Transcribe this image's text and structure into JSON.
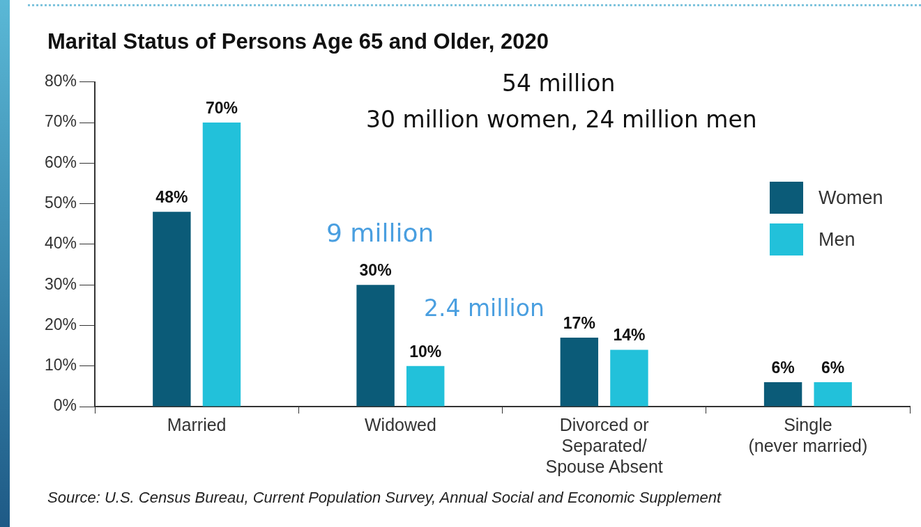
{
  "chart_data": {
    "type": "bar",
    "title": "Marital Status of Persons Age 65 and Older, 2020",
    "categories": [
      "Married",
      "Widowed",
      "Divorced or\nSeparated/\nSpouse Absent",
      "Single\n(never married)"
    ],
    "series": [
      {
        "name": "Women",
        "color": "#0b5b78",
        "values": [
          48,
          30,
          17,
          6
        ],
        "value_labels": [
          "48%",
          "30%",
          "17%",
          "6%"
        ]
      },
      {
        "name": "Men",
        "color": "#22c1da",
        "values": [
          70,
          10,
          14,
          6
        ],
        "value_labels": [
          "70%",
          "10%",
          "14%",
          "6%"
        ]
      }
    ],
    "ylim": [
      0,
      80
    ],
    "yticks": [
      {
        "value": 0,
        "label": "0%"
      },
      {
        "value": 10,
        "label": "10%"
      },
      {
        "value": 20,
        "label": "20%"
      },
      {
        "value": 30,
        "label": "30%"
      },
      {
        "value": 40,
        "label": "40%"
      },
      {
        "value": 50,
        "label": "50%"
      },
      {
        "value": 60,
        "label": "60%"
      },
      {
        "value": 70,
        "label": "70%"
      },
      {
        "value": 80,
        "label": "80%"
      }
    ],
    "grid": false,
    "legend": "right",
    "annotations": [
      "54 million",
      "30 million women, 24 million men",
      "9 million",
      "2.4 million",
      "Source: U.S. Census Bureau, Current Population Survey, Annual Social and Economic Supplement"
    ]
  }
}
